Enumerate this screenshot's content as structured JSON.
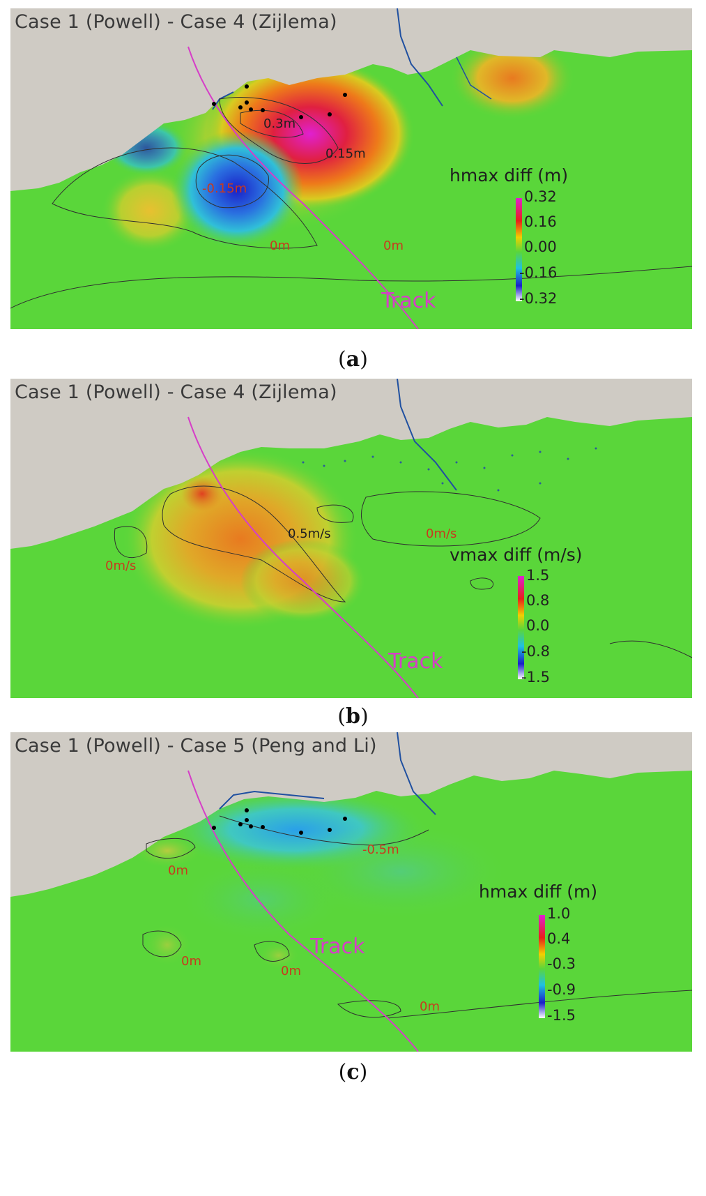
{
  "panels": [
    {
      "id": "a",
      "title": "Case 1 (Powell) - Case 4 (Zijlema)",
      "caption_letter": "a",
      "legend": {
        "title": "hmax diff (m)",
        "ticks": [
          "0.32",
          "0.16",
          "0.00",
          "-0.16",
          "-0.32"
        ],
        "colors": [
          "#e020d0",
          "#e8201a",
          "#f0d000",
          "#5ad63a",
          "#20c0e0",
          "#1a20c8",
          "#ffffff"
        ]
      },
      "contour_labels": [
        {
          "text": "0.3m",
          "style": "dark"
        },
        {
          "text": "0.15m",
          "style": "dark"
        },
        {
          "text": "-0.15m",
          "style": "red"
        },
        {
          "text": "0m",
          "style": "red"
        },
        {
          "text": "0m",
          "style": "red"
        }
      ],
      "track_label": "Track"
    },
    {
      "id": "b",
      "title": "Case 1 (Powell) - Case 4 (Zijlema)",
      "caption_letter": "b",
      "legend": {
        "title": "vmax diff (m/s)",
        "ticks": [
          "1.5",
          "0.8",
          "0.0",
          "-0.8",
          "-1.5"
        ],
        "colors": [
          "#e020d0",
          "#e8201a",
          "#f0d000",
          "#5ad63a",
          "#20c0e0",
          "#1a20c8",
          "#ffffff"
        ]
      },
      "contour_labels": [
        {
          "text": "0.5m/s",
          "style": "dark"
        },
        {
          "text": "0m/s",
          "style": "red"
        },
        {
          "text": "0m/s",
          "style": "red"
        }
      ],
      "track_label": "Track"
    },
    {
      "id": "c",
      "title": "Case 1 (Powell) - Case 5 (Peng and Li)",
      "caption_letter": "c",
      "legend": {
        "title": "hmax diff (m)",
        "ticks": [
          "1.0",
          "0.4",
          "-0.3",
          "-0.9",
          "-1.5"
        ],
        "colors": [
          "#e020d0",
          "#e8201a",
          "#f0d000",
          "#5ad63a",
          "#20c0e0",
          "#1a20c8",
          "#ffffff"
        ]
      },
      "contour_labels": [
        {
          "text": "-0.5m",
          "style": "red"
        },
        {
          "text": "0m",
          "style": "red"
        },
        {
          "text": "0m",
          "style": "red"
        },
        {
          "text": "0m",
          "style": "red"
        },
        {
          "text": "0m",
          "style": "red"
        }
      ],
      "track_label": "Track"
    }
  ],
  "colors": {
    "land": "#cfcbc4",
    "sea": "#5ad63a",
    "track": "#d63ec8",
    "station": "#000000"
  }
}
